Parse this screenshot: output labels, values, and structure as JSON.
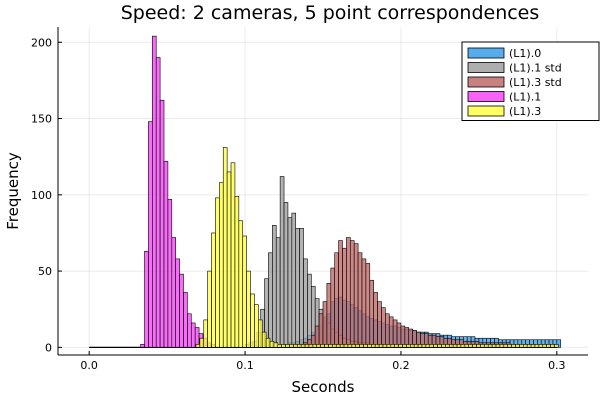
{
  "chart_data": {
    "type": "histogram",
    "title": "Speed: 2 cameras, 5 point correspondences",
    "xlabel": "Seconds",
    "ylabel": "Frequency",
    "xlim": [
      -0.02,
      0.32
    ],
    "ylim": [
      -5,
      210
    ],
    "x_ticks": [
      0.0,
      0.1,
      0.2,
      0.3
    ],
    "x_tick_labels": [
      "0.0",
      "0.1",
      "0.2",
      "0.3"
    ],
    "y_ticks": [
      0,
      50,
      100,
      150,
      200
    ],
    "y_tick_labels": [
      "0",
      "50",
      "100",
      "150",
      "200"
    ],
    "grid": true,
    "legend_position": "top-right",
    "bin_width": 0.0025,
    "series": [
      {
        "name": "(L1).0",
        "color": "#3a9fe8",
        "bin_start": 0.125,
        "counts": [
          2,
          3,
          3,
          4,
          5,
          6,
          8,
          10,
          12,
          14,
          18,
          22,
          30,
          32,
          33,
          31,
          30,
          28,
          26,
          24,
          22,
          20,
          19,
          18,
          17,
          16,
          15,
          14,
          14,
          13,
          12,
          12,
          11,
          11,
          10,
          10,
          10,
          9,
          9,
          9,
          8,
          8,
          8,
          7,
          7,
          7,
          7,
          7,
          7,
          6,
          6,
          6,
          6,
          6,
          6,
          5,
          5,
          5,
          5,
          5,
          5,
          5,
          5,
          5,
          5,
          5,
          5,
          5,
          5,
          5,
          5
        ]
      },
      {
        "name": "(L1).1 std",
        "color": "#a0a0a0",
        "bin_start": 0.1,
        "counts": [
          2,
          3,
          4,
          10,
          25,
          45,
          62,
          80,
          72,
          112,
          95,
          85,
          88,
          78,
          78,
          58,
          48,
          40,
          32,
          25,
          20,
          16,
          12,
          10,
          8,
          6,
          5,
          4,
          4,
          3,
          3,
          3,
          2,
          2,
          2,
          2,
          2,
          2,
          2,
          2,
          2,
          2,
          2,
          2,
          2,
          2,
          2,
          2,
          2,
          2,
          2,
          2,
          2,
          2,
          2,
          2,
          2,
          2,
          2,
          2,
          2,
          2,
          2,
          2,
          2,
          2,
          2,
          2,
          2,
          2,
          2,
          2,
          2,
          2,
          2,
          2,
          2,
          2,
          2,
          2
        ]
      },
      {
        "name": "(L1).3 std",
        "color": "#c06a6a",
        "bin_start": 0.12,
        "counts": [
          0,
          0,
          0,
          0,
          1,
          2,
          2,
          3,
          5,
          8,
          14,
          22,
          30,
          42,
          52,
          62,
          70,
          65,
          72,
          70,
          68,
          62,
          58,
          55,
          44,
          36,
          30,
          26,
          22,
          20,
          18,
          16,
          14,
          13,
          12,
          11,
          10,
          9,
          9,
          8,
          8,
          7,
          7,
          6,
          6,
          5,
          5,
          5,
          4,
          4,
          4,
          4,
          3,
          3,
          3,
          3,
          3,
          3,
          3,
          3
        ]
      },
      {
        "name": "(L1).1",
        "color": "#f548f5",
        "bin_start": 0.033,
        "counts": [
          2,
          63,
          148,
          204,
          190,
          162,
          122,
          97,
          72,
          58,
          48,
          36,
          22,
          16,
          13,
          9,
          6,
          3,
          2
        ]
      },
      {
        "name": "(L1).3",
        "color": "#ffff46",
        "bin_start": 0.0685,
        "counts": [
          2,
          6,
          18,
          50,
          75,
          98,
          108,
          131,
          115,
          121,
          99,
          83,
          73,
          50,
          35,
          28,
          18,
          10,
          6,
          4,
          3,
          2,
          2,
          2,
          2,
          2,
          2,
          2,
          2,
          2,
          2,
          2,
          2,
          2,
          2,
          2,
          2,
          2,
          2,
          2,
          2,
          2,
          2,
          2,
          2,
          2,
          2,
          2,
          2,
          2,
          2,
          2,
          2,
          2,
          2,
          2,
          2,
          2,
          2,
          2,
          2,
          2,
          2,
          2,
          2,
          2,
          2,
          2,
          2,
          2,
          2,
          2,
          2,
          2,
          2,
          2,
          2,
          2,
          2,
          2,
          2,
          2,
          2,
          2,
          2,
          2,
          2,
          2,
          2,
          2,
          2,
          2,
          2
        ]
      }
    ]
  }
}
